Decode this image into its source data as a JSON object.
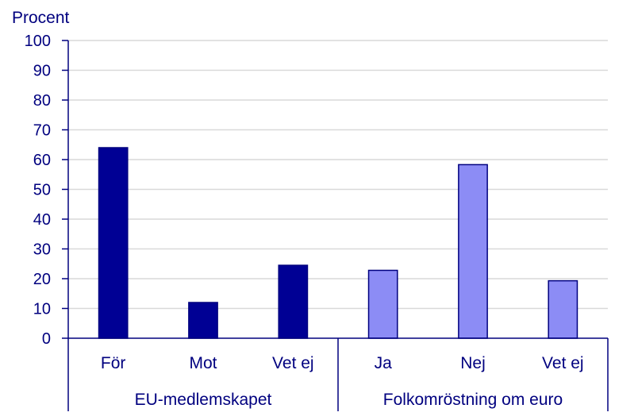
{
  "chart_data": {
    "type": "bar",
    "ylabel": "Procent",
    "ylim": [
      0,
      100
    ],
    "yticks": [
      0,
      10,
      20,
      30,
      40,
      50,
      60,
      70,
      80,
      90,
      100
    ],
    "grid": true,
    "groups": [
      {
        "name": "EU-medlemskapet",
        "color": "#000094",
        "categories": [
          "För",
          "Mot",
          "Vet ej"
        ],
        "values": [
          64,
          12,
          24.5
        ]
      },
      {
        "name": "Folkomröstning om euro",
        "color": "#8c8cf5",
        "categories": [
          "Ja",
          "Nej",
          "Vet ej"
        ],
        "values": [
          22.8,
          58.3,
          19.3
        ]
      }
    ],
    "colors": {
      "axis": "#00007f",
      "grid": "#d9d9d9",
      "bar_outline": "#00007f"
    }
  }
}
